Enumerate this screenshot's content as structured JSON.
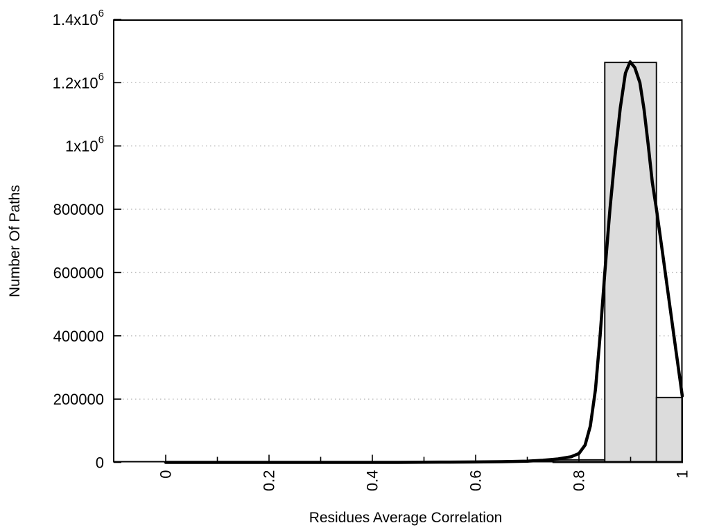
{
  "chart_data": {
    "type": "bar",
    "subtype": "histogram-with-fit-curve",
    "title": "",
    "xlabel": "Residues Average Correlation",
    "ylabel": "Number Of Paths",
    "xlim": [
      -0.1,
      1.0
    ],
    "ylim": [
      0,
      1400000
    ],
    "grid": "horizontal-dotted",
    "legend": "none",
    "colors": {
      "bar_fill": "#dcdcdc",
      "bar_stroke": "#111111",
      "curve": "#000000",
      "grid": "#bdbdbd",
      "axis": "#000000",
      "background": "#ffffff"
    },
    "x_ticks": [
      {
        "v": 0,
        "text": "0"
      },
      {
        "v": 0.2,
        "text": "0.2"
      },
      {
        "v": 0.4,
        "text": "0.4"
      },
      {
        "v": 0.6,
        "text": "0.6"
      },
      {
        "v": 0.8,
        "text": "0.8"
      },
      {
        "v": 1,
        "text": "1"
      }
    ],
    "x_minor_ticks": [
      0.1,
      0.3,
      0.5,
      0.7,
      0.9
    ],
    "y_ticks": [
      {
        "v": 0,
        "text": "0"
      },
      {
        "v": 200000,
        "text": "200000"
      },
      {
        "v": 400000,
        "text": "400000"
      },
      {
        "v": 600000,
        "text": "600000"
      },
      {
        "v": 800000,
        "text": "800000"
      },
      {
        "v": 1000000,
        "text": "1x10",
        "sup": "6"
      },
      {
        "v": 1200000,
        "text": "1.2x10",
        "sup": "6"
      },
      {
        "v": 1400000,
        "text": "1.4x10",
        "sup": "6"
      }
    ],
    "bins": [
      {
        "x0": 0.75,
        "x1": 0.85,
        "value": 8000
      },
      {
        "x0": 0.85,
        "x1": 0.95,
        "value": 1264000
      },
      {
        "x0": 0.95,
        "x1": 1.0,
        "value": 205000
      }
    ],
    "curve_points": [
      [
        0.0,
        0
      ],
      [
        0.1,
        0
      ],
      [
        0.2,
        0
      ],
      [
        0.3,
        0
      ],
      [
        0.4,
        0
      ],
      [
        0.45,
        0
      ],
      [
        0.5,
        500
      ],
      [
        0.55,
        900
      ],
      [
        0.6,
        1400
      ],
      [
        0.65,
        2200
      ],
      [
        0.7,
        4000
      ],
      [
        0.73,
        6500
      ],
      [
        0.76,
        11000
      ],
      [
        0.785,
        18000
      ],
      [
        0.8,
        28000
      ],
      [
        0.812,
        55000
      ],
      [
        0.822,
        115000
      ],
      [
        0.832,
        230000
      ],
      [
        0.841,
        400000
      ],
      [
        0.85,
        600000
      ],
      [
        0.86,
        800000
      ],
      [
        0.87,
        970000
      ],
      [
        0.88,
        1120000
      ],
      [
        0.89,
        1230000
      ],
      [
        0.899,
        1266000
      ],
      [
        0.908,
        1248000
      ],
      [
        0.918,
        1200000
      ],
      [
        0.926,
        1115000
      ],
      [
        0.934,
        1005000
      ],
      [
        0.942,
        885000
      ],
      [
        0.95,
        800000
      ],
      [
        0.962,
        660000
      ],
      [
        0.975,
        505000
      ],
      [
        0.988,
        350000
      ],
      [
        1.0,
        210000
      ]
    ]
  }
}
